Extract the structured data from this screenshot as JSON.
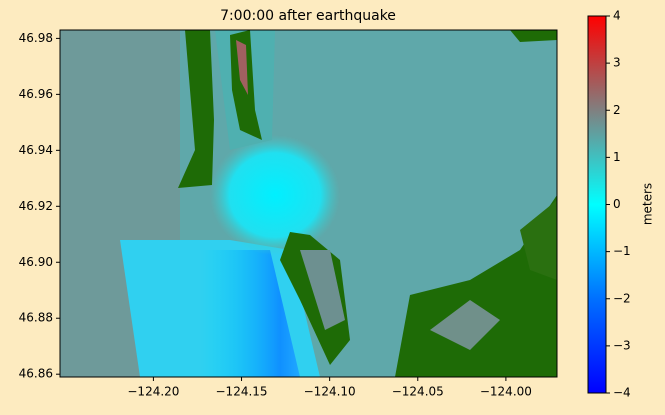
{
  "chart_data": {
    "type": "heatmap",
    "title": "7:00:00 after earthquake",
    "xlim": [
      -124.253,
      -123.971
    ],
    "xticks": [
      {
        "value": -124.2,
        "label": "−124.20"
      },
      {
        "value": -124.15,
        "label": "−124.15"
      },
      {
        "value": -124.1,
        "label": "−124.10"
      },
      {
        "value": -124.05,
        "label": "−124.05"
      },
      {
        "value": -124.0,
        "label": "−124.00"
      }
    ],
    "ylim": [
      46.859,
      46.983
    ],
    "yticks": [
      46.86,
      46.88,
      {
        "value": 46.9,
        "label": "46.90"
      },
      46.92,
      46.94,
      46.96,
      46.98
    ],
    "colorbar": {
      "label": "meters",
      "lim": [
        -4,
        4
      ],
      "ticks": [
        {
          "value": -4,
          "label": "−4"
        },
        {
          "value": -3,
          "label": "−3"
        },
        {
          "value": -2,
          "label": "−2"
        },
        {
          "value": -1,
          "label": "−1"
        },
        0,
        1,
        2,
        3,
        4
      ],
      "stops": [
        {
          "value": -4,
          "color": "#0000ff"
        },
        {
          "value": -2,
          "color": "#0070ff"
        },
        {
          "value": 0,
          "color": "#00ffff"
        },
        {
          "value": 1,
          "color": "#40c0c0"
        },
        {
          "value": 2,
          "color": "#808080"
        },
        {
          "value": 4,
          "color": "#ff0000"
        }
      ]
    }
  }
}
